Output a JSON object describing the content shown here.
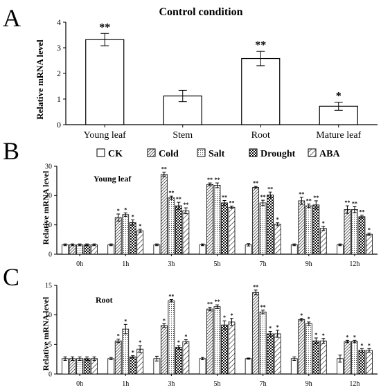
{
  "chart_data": [
    {
      "panel": "A",
      "type": "bar",
      "title": "Control condition",
      "xlabel": "",
      "ylabel": "Relative mRNA level",
      "ylim": [
        0,
        4
      ],
      "yticks": [
        0,
        1,
        2,
        3,
        4
      ],
      "categories": [
        "Young leaf",
        "Stem",
        "Root",
        "Mature leaf"
      ],
      "values": [
        3.32,
        1.12,
        2.58,
        0.72
      ],
      "errors": [
        0.24,
        0.22,
        0.28,
        0.16
      ],
      "significance": [
        "**",
        "",
        "**",
        "*"
      ]
    },
    {
      "panel": "B",
      "type": "bar",
      "subtitle": "Young leaf",
      "xlabel": "",
      "ylabel": "Relative mRNA level",
      "ylim": [
        0,
        30
      ],
      "yticks": [
        0,
        10,
        20,
        30
      ],
      "categories": [
        "0h",
        "1h",
        "3h",
        "5h",
        "7h",
        "9h",
        "12h"
      ],
      "legend": {
        "placement": "top"
      },
      "series": [
        {
          "name": "CK",
          "pattern": "white",
          "values": [
            3.2,
            3.2,
            3.2,
            3.2,
            3.2,
            3.2,
            3.2
          ],
          "errors": [
            0.3,
            0.3,
            0.3,
            0.3,
            0.4,
            0.3,
            0.3
          ],
          "significance": [
            "",
            "",
            "",
            "",
            "",
            "",
            ""
          ]
        },
        {
          "name": "Cold",
          "pattern": "hatch-fine",
          "values": [
            3.2,
            12.5,
            27.2,
            23.8,
            22.8,
            18.2,
            15.2
          ],
          "errors": [
            0.3,
            1.2,
            0.8,
            0.5,
            0.3,
            1.2,
            1.3
          ],
          "significance": [
            "",
            "*",
            "**",
            "**",
            "**",
            "**",
            "**"
          ]
        },
        {
          "name": "Salt",
          "pattern": "dots",
          "values": [
            3.2,
            13.5,
            19.2,
            23.5,
            17.5,
            16.5,
            15.2
          ],
          "errors": [
            0.3,
            0.6,
            0.6,
            0.8,
            0.9,
            0.6,
            1.0
          ],
          "significance": [
            "",
            "*",
            "**",
            "**",
            "**",
            "**",
            "**"
          ]
        },
        {
          "name": "Drought",
          "pattern": "checker",
          "values": [
            3.2,
            10.8,
            16.5,
            17.5,
            20.2,
            16.8,
            12.8
          ],
          "errors": [
            0.3,
            0.9,
            1.2,
            0.8,
            1.0,
            1.4,
            0.5
          ],
          "significance": [
            "",
            "*",
            "**",
            "**",
            "**",
            "**",
            "**"
          ]
        },
        {
          "name": "ABA",
          "pattern": "hatch-wide",
          "values": [
            3.2,
            8.0,
            14.8,
            16.0,
            10.2,
            8.8,
            6.8
          ],
          "errors": [
            0.3,
            0.5,
            1.0,
            0.4,
            0.5,
            0.7,
            0.4
          ],
          "significance": [
            "",
            "*",
            "**",
            "**",
            "*",
            "*",
            "*"
          ]
        }
      ]
    },
    {
      "panel": "C",
      "type": "bar",
      "subtitle": "Root",
      "xlabel": "",
      "ylabel": "Relative mRNA level",
      "ylim": [
        0,
        15
      ],
      "yticks": [
        0,
        5,
        10,
        15
      ],
      "categories": [
        "0h",
        "1h",
        "3h",
        "5h",
        "7h",
        "9h",
        "12h"
      ],
      "series": [
        {
          "name": "CK",
          "pattern": "white",
          "values": [
            2.6,
            2.6,
            2.6,
            2.6,
            2.6,
            2.6,
            2.6
          ],
          "errors": [
            0.3,
            0.2,
            0.4,
            0.2,
            0.1,
            0.3,
            0.6
          ],
          "significance": [
            "",
            "",
            "",
            "",
            "",
            "",
            ""
          ]
        },
        {
          "name": "Cold",
          "pattern": "hatch-fine",
          "values": [
            2.6,
            5.6,
            8.2,
            11.0,
            13.8,
            9.2,
            5.5
          ],
          "errors": [
            0.3,
            0.3,
            0.3,
            0.3,
            0.4,
            0.2,
            0.2
          ],
          "significance": [
            "",
            "*",
            "*",
            "**",
            "**",
            "*",
            "*"
          ]
        },
        {
          "name": "Salt",
          "pattern": "dots",
          "values": [
            2.6,
            7.6,
            12.4,
            11.4,
            10.5,
            8.5,
            5.5
          ],
          "errors": [
            0.3,
            0.8,
            0.2,
            0.3,
            0.3,
            0.3,
            0.2
          ],
          "significance": [
            "",
            "*",
            "**",
            "**",
            "**",
            "*",
            "*"
          ]
        },
        {
          "name": "Drought",
          "pattern": "checker",
          "values": [
            2.6,
            2.9,
            4.5,
            8.3,
            6.8,
            5.6,
            4.0
          ],
          "errors": [
            0.3,
            0.2,
            0.3,
            0.7,
            0.4,
            0.5,
            0.3
          ],
          "significance": [
            "",
            "*",
            "*",
            "*",
            "*",
            "*",
            "*"
          ]
        },
        {
          "name": "ABA",
          "pattern": "hatch-wide",
          "values": [
            2.6,
            4.2,
            5.5,
            8.8,
            6.8,
            5.6,
            4.0
          ],
          "errors": [
            0.3,
            0.6,
            0.3,
            0.6,
            0.6,
            0.4,
            0.3
          ],
          "significance": [
            "",
            "*",
            "*",
            "*",
            "*",
            "*",
            "*"
          ]
        }
      ]
    }
  ]
}
